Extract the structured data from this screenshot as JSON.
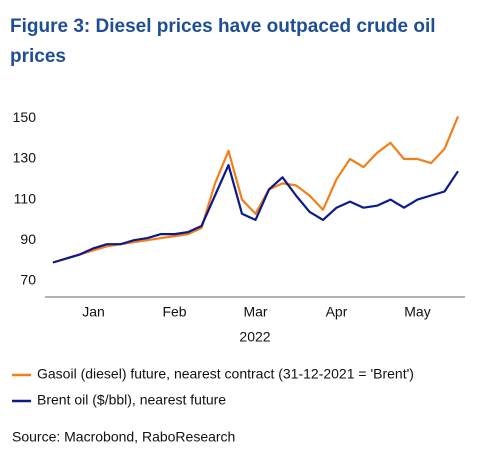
{
  "chart_data": {
    "type": "line",
    "title": "Figure 3: Diesel prices have outpaced crude oil prices",
    "x_label": "2022",
    "source": "Source:  Macrobond, RaboResearch",
    "categories": [
      null,
      null,
      null,
      "Jan",
      null,
      null,
      null,
      null,
      null,
      "Feb",
      null,
      null,
      null,
      null,
      null,
      "Mar",
      null,
      null,
      null,
      null,
      null,
      "Apr",
      null,
      null,
      null,
      null,
      null,
      "May",
      null,
      null,
      null
    ],
    "series": [
      {
        "name": "Gasoil (diesel) future, nearest contract (31-12-2021 = 'Brent')",
        "color": "#f07f1c",
        "values": [
          79,
          81,
          83,
          85,
          87,
          88,
          89,
          90,
          91,
          92,
          93,
          96,
          118,
          134,
          110,
          103,
          115,
          118,
          117,
          112,
          105,
          120,
          130,
          126,
          133,
          138,
          130,
          130,
          128,
          135,
          151
        ]
      },
      {
        "name": "Brent oil ($/bbl), nearest future",
        "color": "#0d1a8a",
        "values": [
          79,
          81,
          83,
          86,
          88,
          88,
          90,
          91,
          93,
          93,
          94,
          97,
          112,
          127,
          103,
          100,
          115,
          121,
          112,
          104,
          100,
          106,
          109,
          106,
          107,
          110,
          106,
          110,
          112,
          114,
          124
        ]
      }
    ],
    "ylim": [
      62,
      164
    ],
    "yticks": [
      70,
      90,
      110,
      130,
      150
    ]
  }
}
